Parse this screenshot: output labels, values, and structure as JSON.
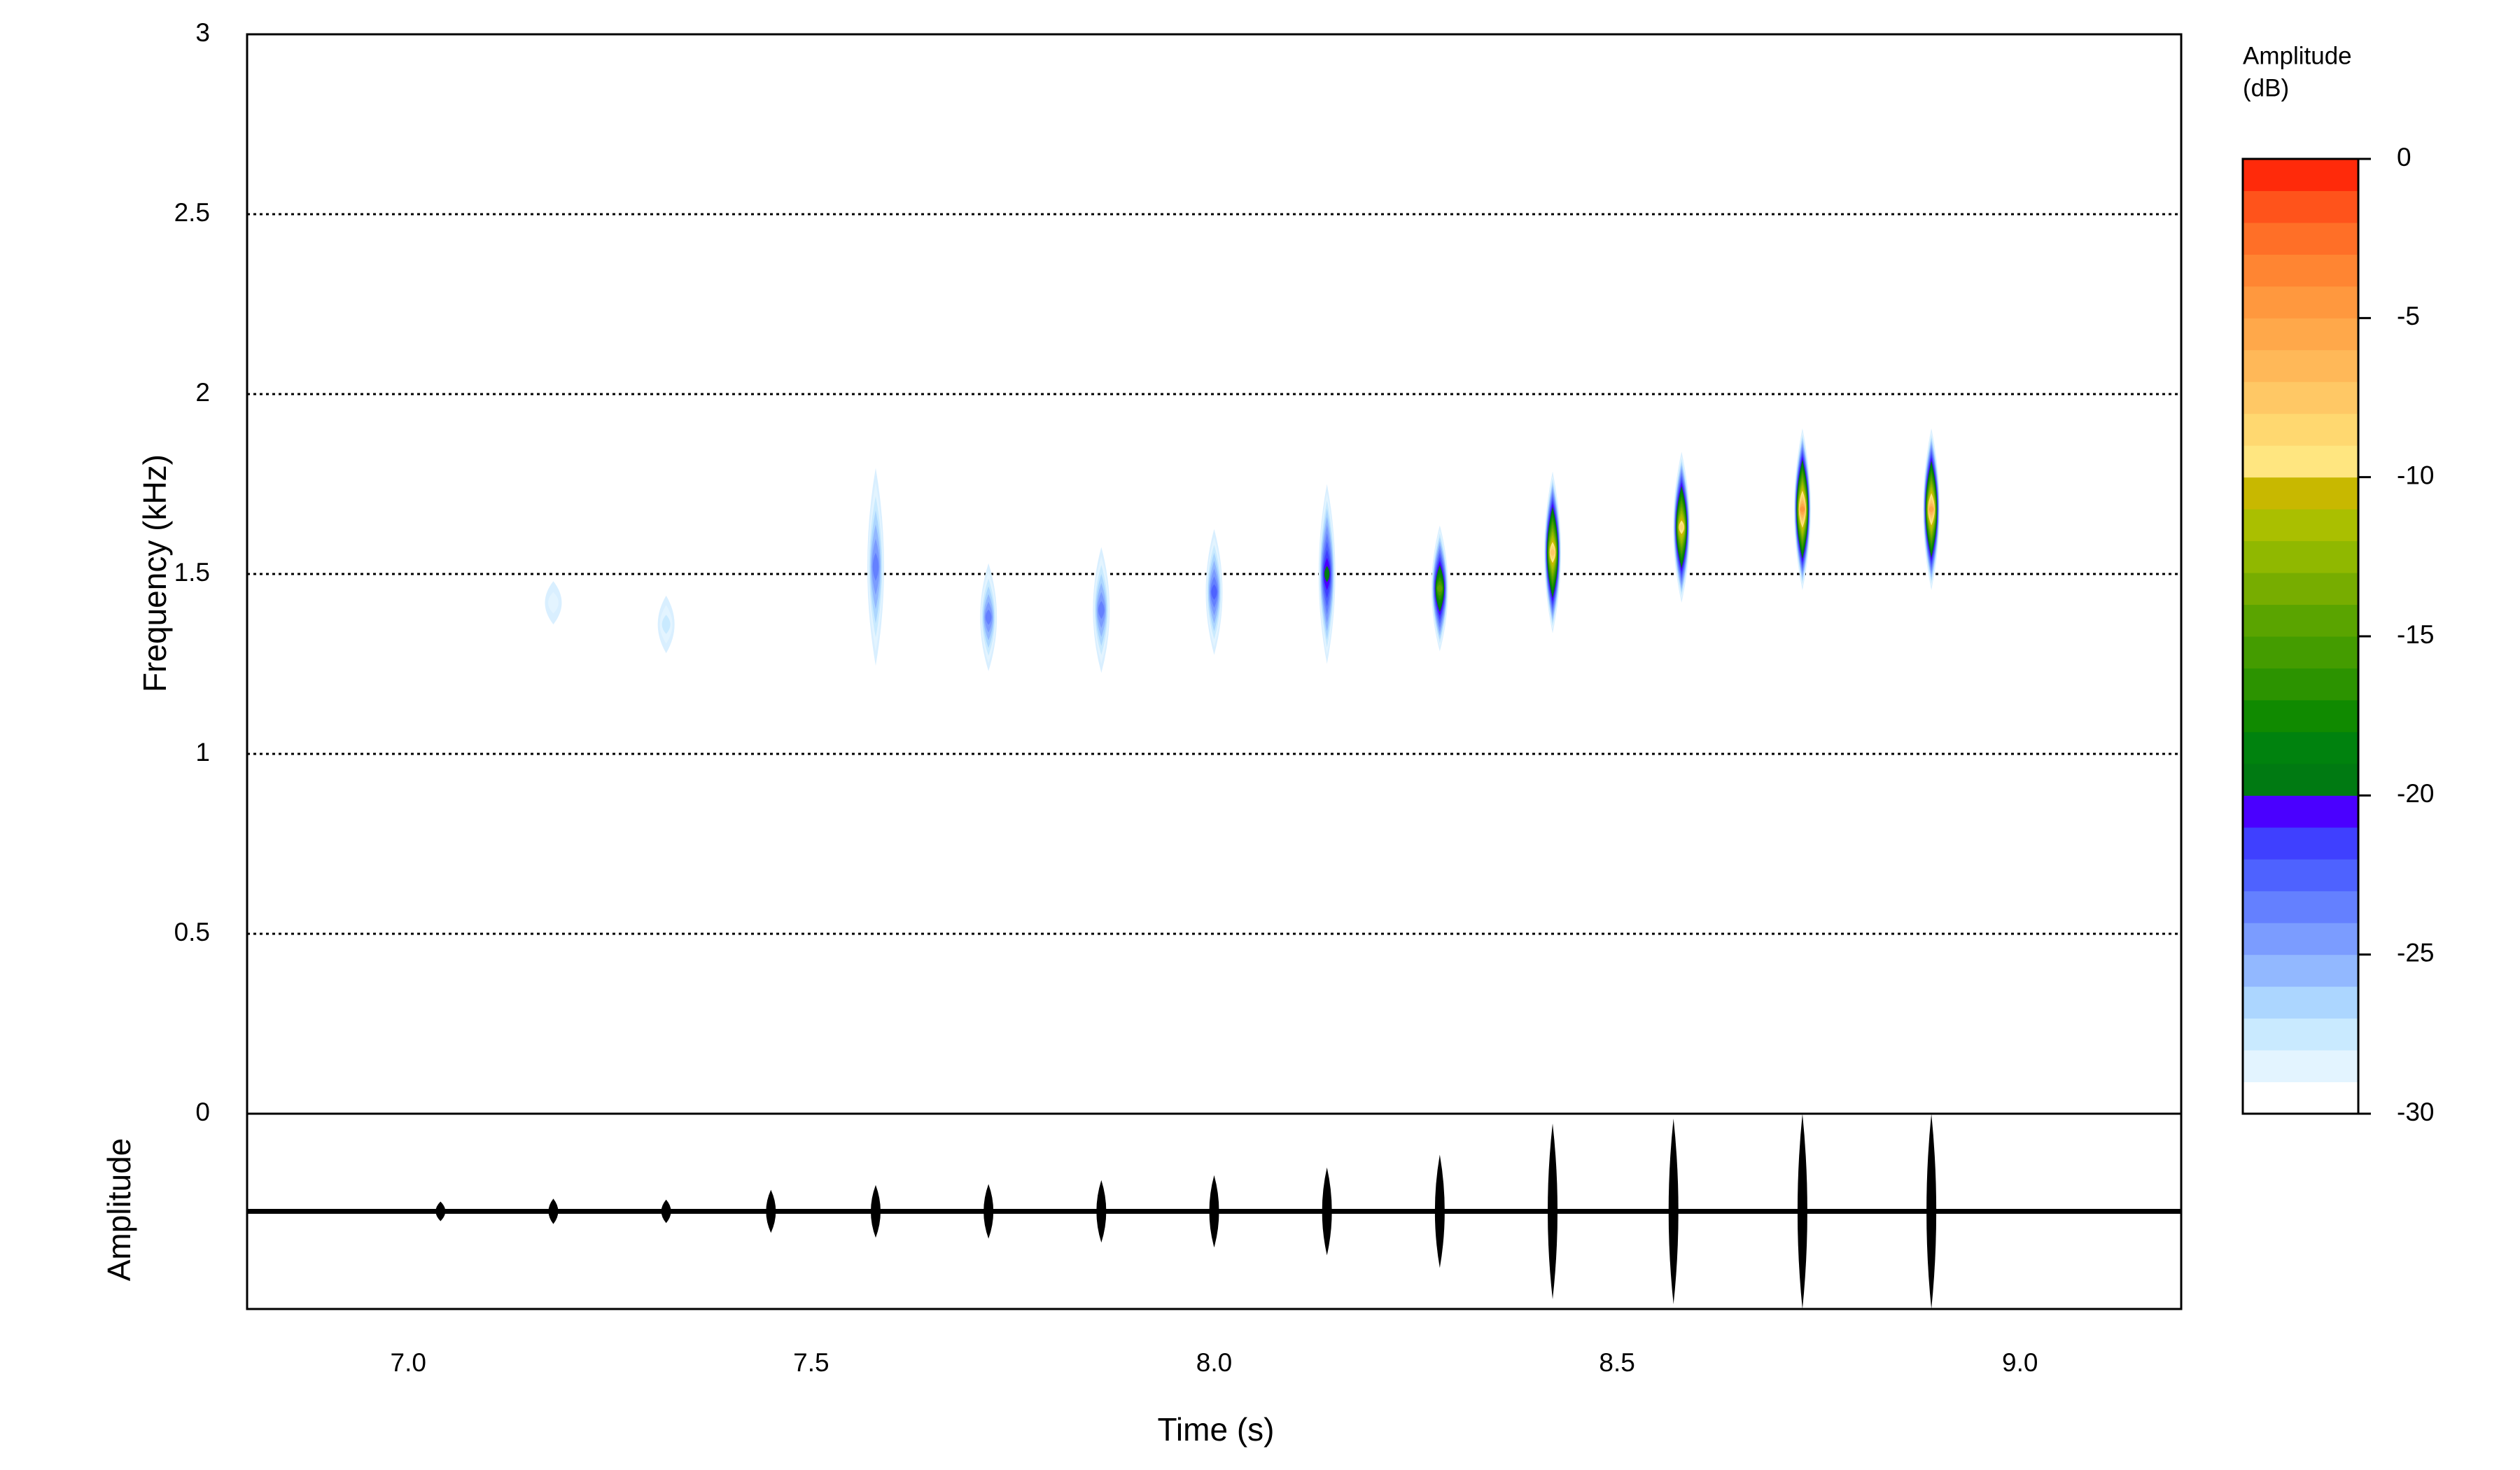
{
  "chart_data": {
    "type": "spectrogram",
    "xlabel": "Time (s)",
    "ylabel": "Frequency (kHz)",
    "oscillogram_label": "Amplitude",
    "xlim": [
      6.8,
      9.2
    ],
    "xticks": [
      {
        "value": 7,
        "label": "7.0"
      },
      {
        "value": 7.5,
        "label": "7.5"
      },
      {
        "value": 8,
        "label": "8.0"
      },
      {
        "value": 8.5,
        "label": "8.5"
      },
      {
        "value": 9,
        "label": "9.0"
      }
    ],
    "ylim": [
      0,
      3
    ],
    "yticks": [
      0,
      0.5,
      1,
      1.5,
      2,
      2.5,
      3
    ],
    "grid": true,
    "pulses": {
      "times": [
        7.18,
        7.32,
        7.58,
        7.72,
        7.86,
        8.0,
        8.14,
        8.28,
        8.42,
        8.58,
        8.73,
        8.89
      ],
      "freqs": [
        1.42,
        1.36,
        1.52,
        1.38,
        1.4,
        1.45,
        1.5,
        1.46,
        1.56,
        1.63,
        1.68,
        1.68
      ],
      "bandwidths": [
        0.12,
        0.16,
        0.55,
        0.3,
        0.35,
        0.35,
        0.5,
        0.35,
        0.45,
        0.42,
        0.45,
        0.45
      ],
      "peak_db": [
        -29,
        -28,
        -24,
        -24,
        -24,
        -23,
        -20,
        -15,
        -8,
        -9,
        -5,
        -6
      ]
    },
    "oscillogram": {
      "ylim": [
        -1,
        1
      ],
      "times": [
        7.04,
        7.18,
        7.32,
        7.45,
        7.58,
        7.72,
        7.86,
        8.0,
        8.14,
        8.28,
        8.42,
        8.57,
        8.73,
        8.89
      ],
      "amplitudes": [
        0.1,
        0.13,
        0.12,
        0.22,
        0.27,
        0.28,
        0.32,
        0.37,
        0.45,
        0.58,
        0.9,
        0.95,
        1,
        1
      ]
    },
    "colorbar": {
      "title": [
        "Amplitude",
        "(dB)"
      ],
      "lim": [
        -30,
        0
      ],
      "ticks": [
        0,
        -5,
        -10,
        -15,
        -20,
        -25,
        -30
      ],
      "colors": [
        "#ffffff",
        "#e3f4ff",
        "#c9eaff",
        "#acd6ff",
        "#92b8ff",
        "#7b9cff",
        "#6480ff",
        "#4e62ff",
        "#3f40ff",
        "#4a00ff",
        "#007a12",
        "#00820e",
        "#108a00",
        "#2c9300",
        "#449c00",
        "#5aa400",
        "#77ad00",
        "#90b800",
        "#aabf00",
        "#c8b800",
        "#ffe680",
        "#ffd870",
        "#ffc865",
        "#ffb858",
        "#ffa84a",
        "#ff983e",
        "#ff8532",
        "#ff6f27",
        "#ff531b",
        "#ff2a0a"
      ]
    }
  }
}
